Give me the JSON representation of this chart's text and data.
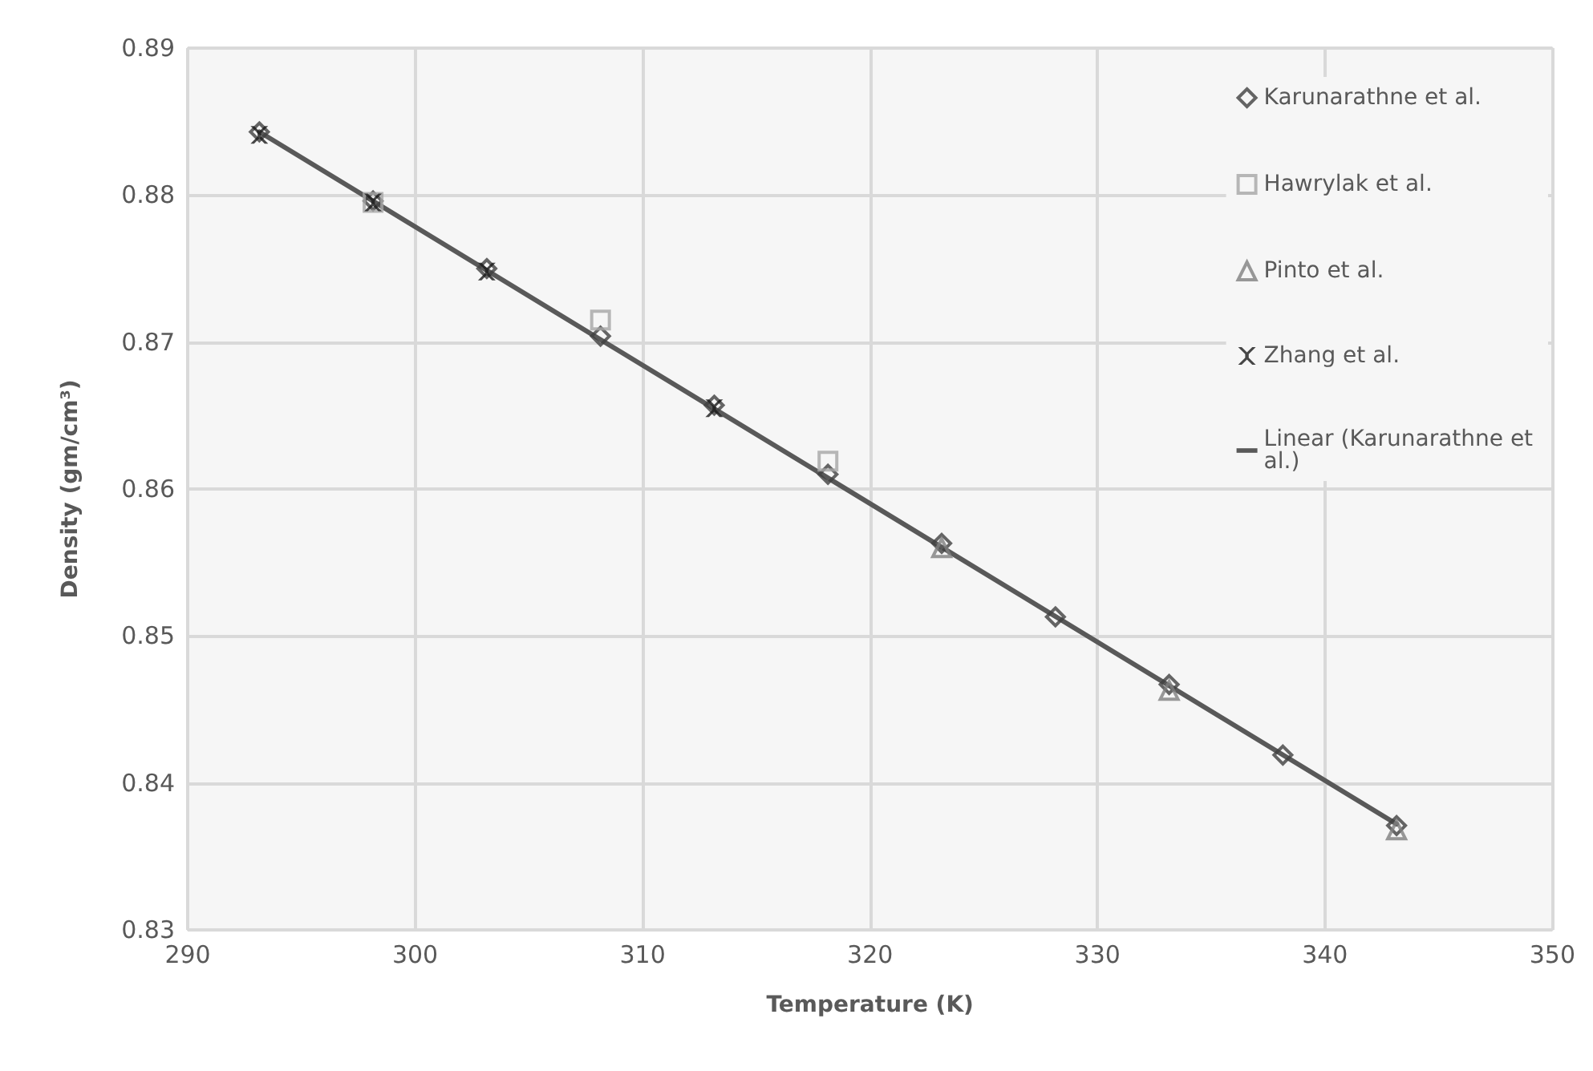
{
  "chart_data": {
    "type": "scatter",
    "xlabel": "Temperature (K)",
    "ylabel": "Density (gm/cm³)",
    "xlim": [
      290,
      350
    ],
    "xticks": [
      290,
      300,
      310,
      320,
      330,
      340,
      350
    ],
    "ylim": [
      0.83,
      0.89
    ],
    "yticks": [
      0.83,
      0.84,
      0.85,
      0.86,
      0.87,
      0.88,
      0.89
    ],
    "grid": true,
    "legend": "top right",
    "series": [
      {
        "name": "Karunarathne et al.",
        "color": "#404040",
        "marker": "diamond",
        "x": [
          293.15,
          298.15,
          303.15,
          308.15,
          313.15,
          318.15,
          323.15,
          328.15,
          333.15,
          338.15,
          343.15
        ],
        "values": [
          0.8843,
          0.8796,
          0.875,
          0.8704,
          0.8657,
          0.861,
          0.8563,
          0.8513,
          0.8467,
          0.8419,
          0.8371
        ]
      },
      {
        "name": "Hawrylak et al.",
        "color": "#a6a6a6",
        "marker": "square",
        "x": [
          298.15,
          308.15,
          318.15
        ],
        "values": [
          0.8795,
          0.8715,
          0.8619
        ]
      },
      {
        "name": "Pinto et al.",
        "color": "#808080",
        "marker": "triangle",
        "x": [
          323.15,
          333.15,
          343.15
        ],
        "values": [
          0.856,
          0.8463,
          0.8368
        ]
      },
      {
        "name": "Zhang et al.",
        "color": "#1a1a1a",
        "marker": "cross",
        "x": [
          293.15,
          298.15,
          303.15,
          313.15
        ],
        "values": [
          0.8841,
          0.8795,
          0.8748,
          0.8655
        ]
      },
      {
        "name": "Linear (Karunarathne et al.)",
        "type": "line",
        "color": "#595959",
        "marker": "none",
        "line_style": "solid",
        "x": [
          293.15,
          343.15
        ],
        "values": [
          0.8843,
          0.8372
        ]
      }
    ]
  }
}
